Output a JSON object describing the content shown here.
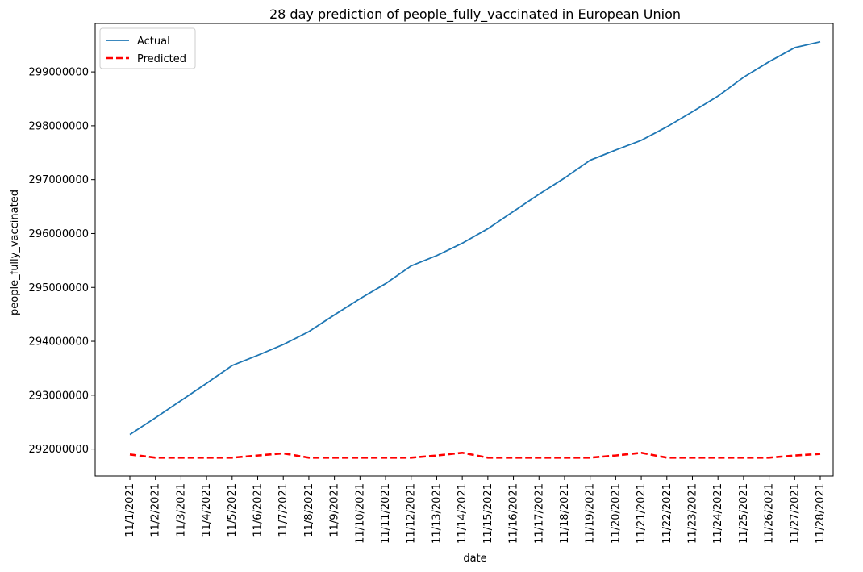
{
  "chart_data": {
    "type": "line",
    "title": "28 day prediction of people_fully_vaccinated in European Union",
    "xlabel": "date",
    "ylabel": "people_fully_vaccinated",
    "ylim": [
      291500000,
      299900000
    ],
    "x": [
      "11/1/2021",
      "11/2/2021",
      "11/3/2021",
      "11/4/2021",
      "11/5/2021",
      "11/6/2021",
      "11/7/2021",
      "11/8/2021",
      "11/9/2021",
      "11/10/2021",
      "11/11/2021",
      "11/12/2021",
      "11/13/2021",
      "11/14/2021",
      "11/15/2021",
      "11/16/2021",
      "11/17/2021",
      "11/18/2021",
      "11/19/2021",
      "11/20/2021",
      "11/21/2021",
      "11/22/2021",
      "11/23/2021",
      "11/24/2021",
      "11/25/2021",
      "11/26/2021",
      "11/27/2021",
      "11/28/2021"
    ],
    "yticks": [
      292000000,
      293000000,
      294000000,
      295000000,
      296000000,
      297000000,
      298000000,
      299000000
    ],
    "ytick_labels": [
      "292000000",
      "293000000",
      "294000000",
      "295000000",
      "296000000",
      "297000000",
      "298000000",
      "299000000"
    ],
    "legend_position": "upper-left",
    "series": [
      {
        "name": "Actual",
        "color": "#1f77b4",
        "style": "solid",
        "values": [
          292270000,
          292580000,
          292900000,
          293220000,
          293550000,
          293740000,
          293940000,
          294180000,
          294490000,
          294790000,
          295070000,
          295400000,
          295590000,
          295820000,
          296090000,
          296410000,
          296730000,
          297030000,
          297360000,
          297550000,
          297730000,
          297980000,
          298260000,
          298550000,
          298900000,
          299190000,
          299450000,
          299560000
        ]
      },
      {
        "name": "Predicted",
        "color": "#ff0000",
        "style": "dashed",
        "values": [
          291900000,
          291840000,
          291840000,
          291840000,
          291840000,
          291880000,
          291920000,
          291840000,
          291840000,
          291840000,
          291840000,
          291840000,
          291880000,
          291930000,
          291840000,
          291840000,
          291840000,
          291840000,
          291840000,
          291880000,
          291930000,
          291840000,
          291840000,
          291840000,
          291840000,
          291840000,
          291880000,
          291910000
        ]
      }
    ]
  }
}
